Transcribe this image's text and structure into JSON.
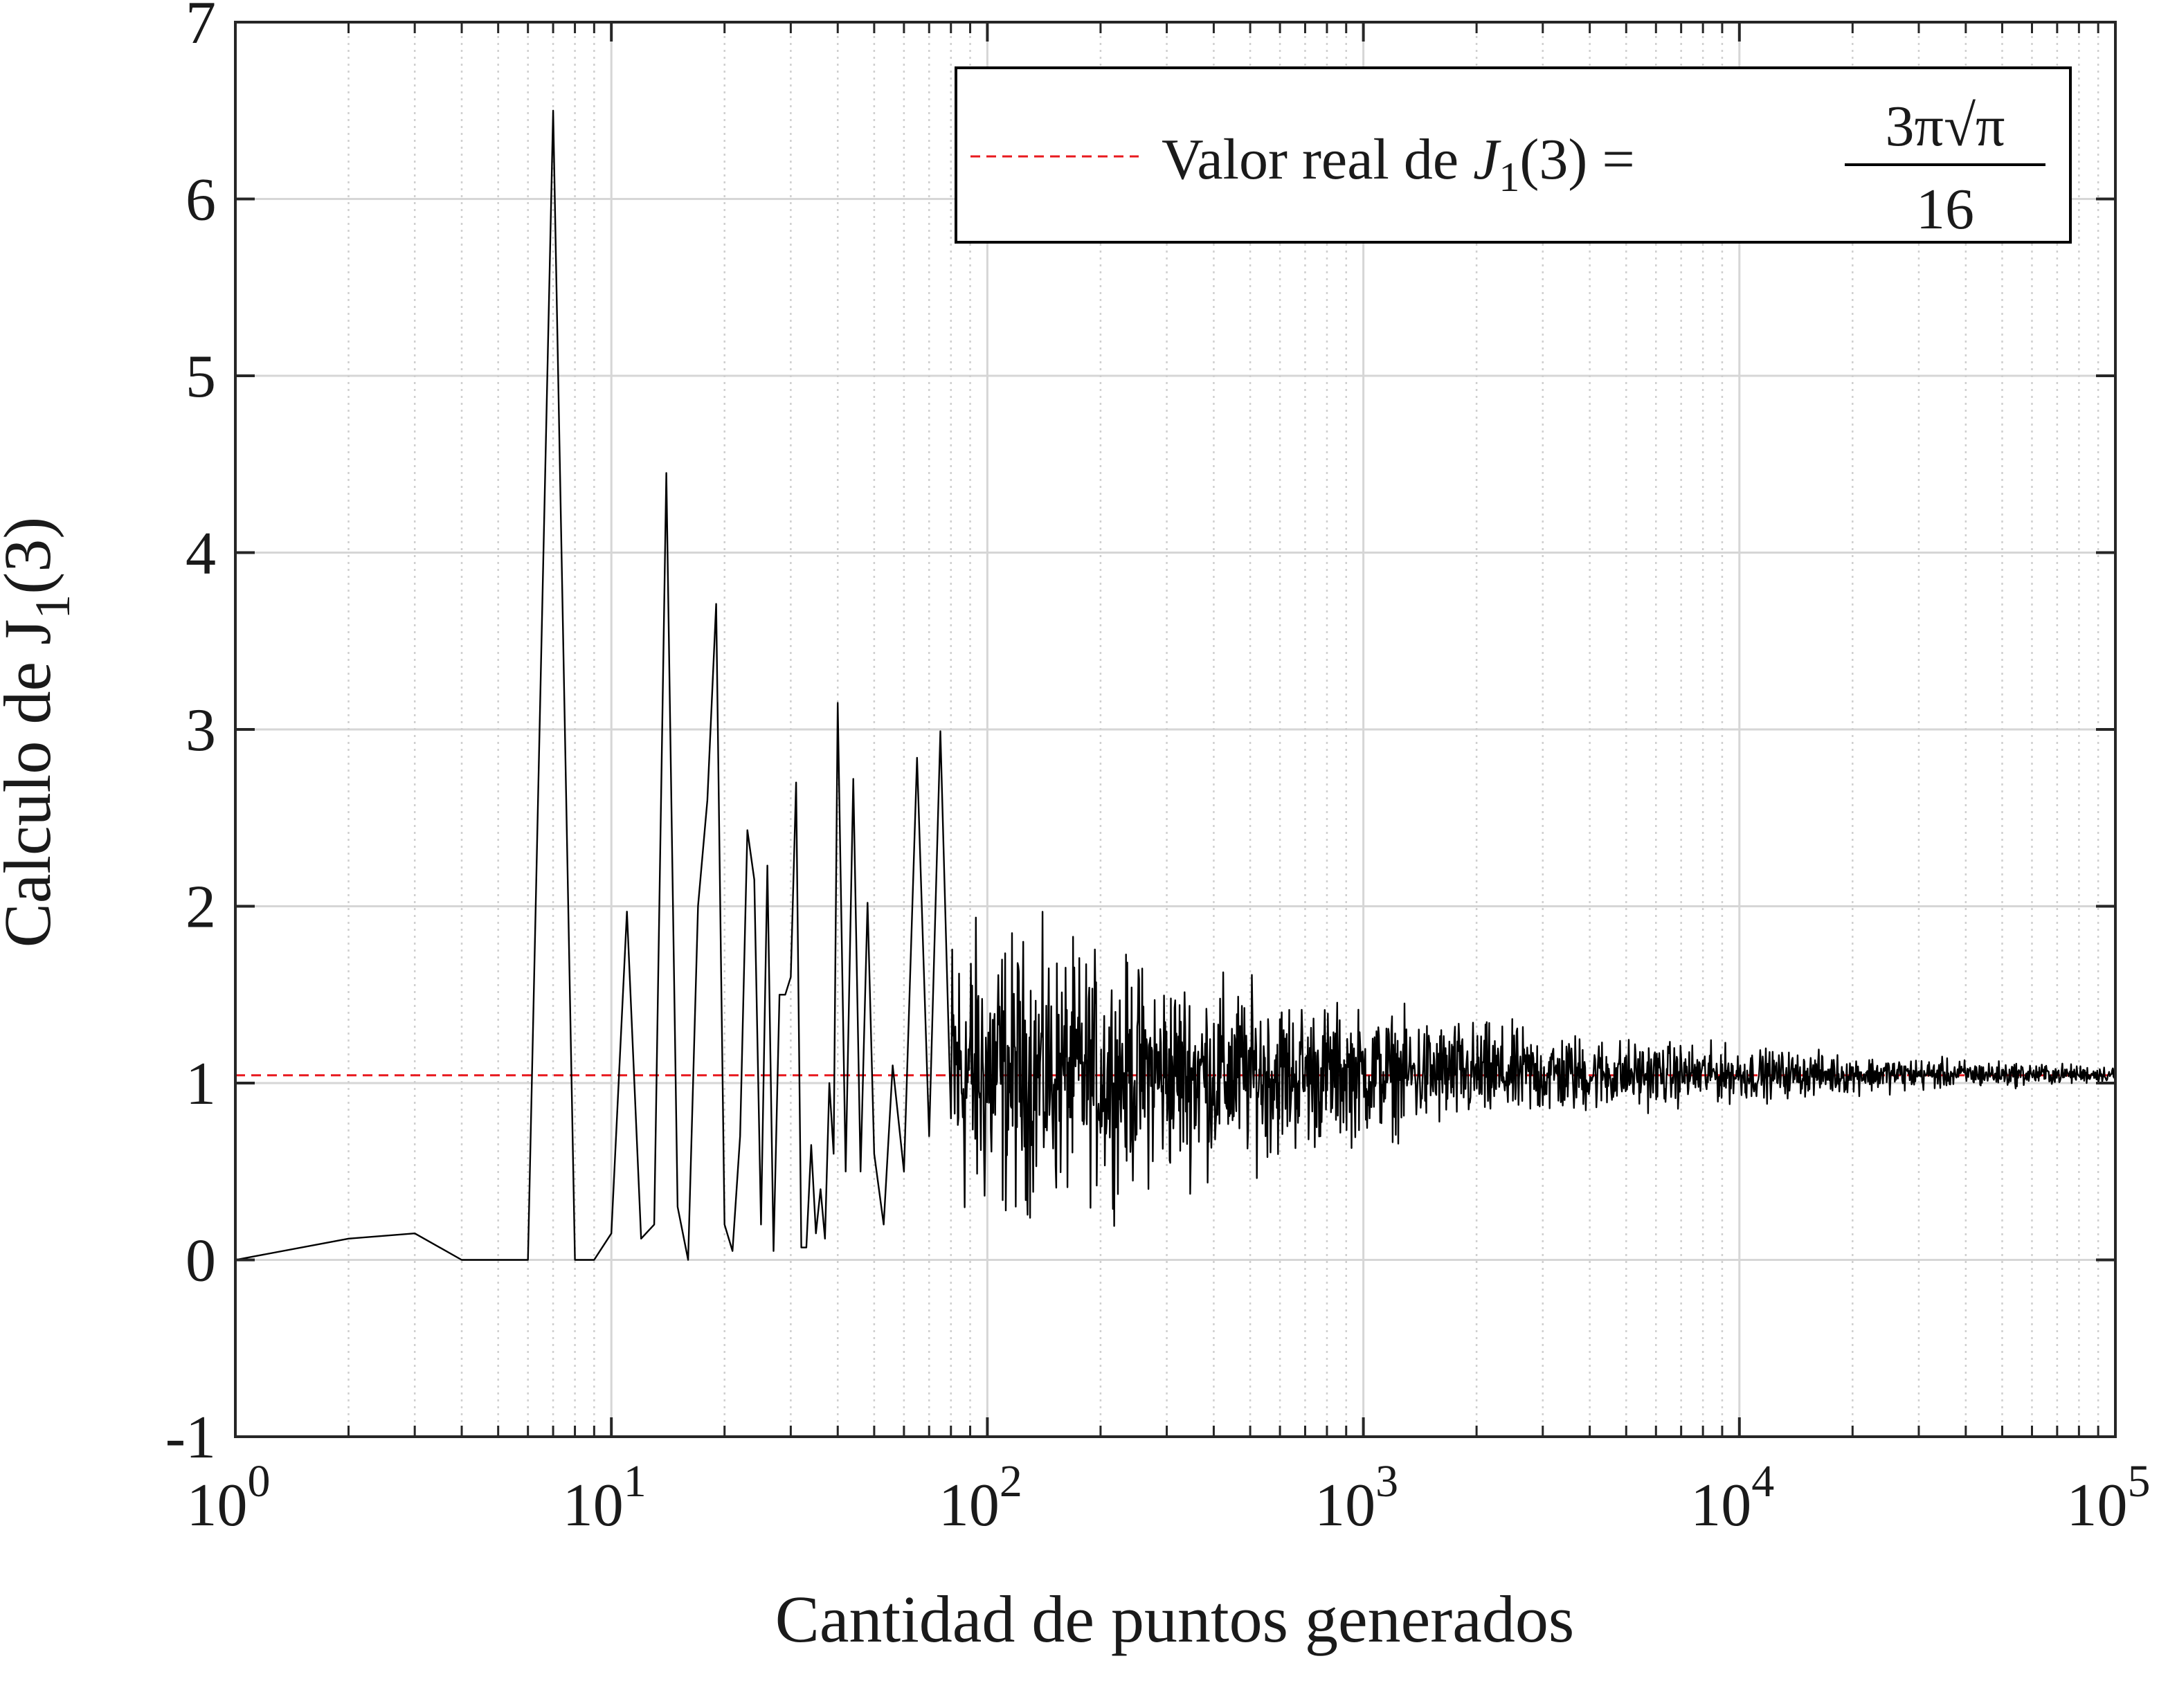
{
  "chart_data": {
    "type": "line",
    "xlabel": "Cantidad de puntos generados",
    "ylabel": {
      "prefix": "Calculo de J",
      "subscript": "1",
      "suffix": "(3)"
    },
    "x_scale": "log",
    "xlim": [
      1,
      100000
    ],
    "ylim": [
      -1,
      7
    ],
    "grid": true,
    "x_ticks": [
      {
        "base": "10",
        "exp": "0"
      },
      {
        "base": "10",
        "exp": "1"
      },
      {
        "base": "10",
        "exp": "2"
      },
      {
        "base": "10",
        "exp": "3"
      },
      {
        "base": "10",
        "exp": "4"
      },
      {
        "base": "10",
        "exp": "5"
      }
    ],
    "y_ticks": [
      "-1",
      "0",
      "1",
      "2",
      "3",
      "4",
      "5",
      "6",
      "7"
    ],
    "legend": {
      "position": "top-right",
      "label": {
        "text": "Valor real de ",
        "func": "J",
        "sub": "1",
        "arg": "(3) =",
        "numerator": "3π√π",
        "denominator": "16"
      }
    },
    "series": [
      {
        "style": "dashed",
        "color": "#e8191e",
        "x": [
          1,
          100000
        ],
        "y": [
          1.0442,
          1.0442
        ]
      },
      {
        "style": "solid",
        "color": "#000000",
        "x": [
          1,
          2,
          3,
          4,
          5,
          6,
          7,
          8,
          9,
          10,
          11,
          12,
          13,
          14,
          15,
          16,
          17,
          18,
          19,
          20,
          21,
          22,
          23,
          24,
          25,
          26,
          27,
          28,
          29,
          30,
          31,
          32,
          33,
          34,
          35,
          36,
          37,
          38,
          39,
          40,
          42,
          44,
          46,
          48,
          50,
          53,
          56,
          60,
          65,
          70,
          75,
          80
        ],
        "y": [
          0.0,
          0.12,
          0.15,
          0.0,
          0.0,
          0.0,
          6.5,
          0.0,
          0.0,
          0.15,
          1.97,
          0.12,
          0.2,
          4.45,
          0.3,
          0.0,
          2.0,
          2.6,
          3.71,
          0.2,
          0.05,
          0.7,
          2.43,
          2.15,
          0.2,
          2.23,
          0.05,
          1.5,
          1.5,
          1.6,
          2.7,
          0.07,
          0.07,
          0.65,
          0.15,
          0.4,
          0.12,
          1.0,
          0.6,
          3.15,
          0.5,
          2.72,
          0.5,
          2.02,
          0.6,
          0.2,
          1.1,
          0.5,
          2.84,
          0.7,
          2.99,
          0.8
        ],
        "noise": {
          "x_start": 80,
          "x_end": 100000,
          "center": 1.05,
          "amplitude_anchors": [
            {
              "x": 80,
              "amp": 1.0
            },
            {
              "x": 150,
              "amp": 0.8
            },
            {
              "x": 400,
              "amp": 0.6
            },
            {
              "x": 1000,
              "amp": 0.4
            },
            {
              "x": 5000,
              "amp": 0.22
            },
            {
              "x": 20000,
              "amp": 0.12
            },
            {
              "x": 100000,
              "amp": 0.05
            }
          ]
        }
      }
    ]
  }
}
